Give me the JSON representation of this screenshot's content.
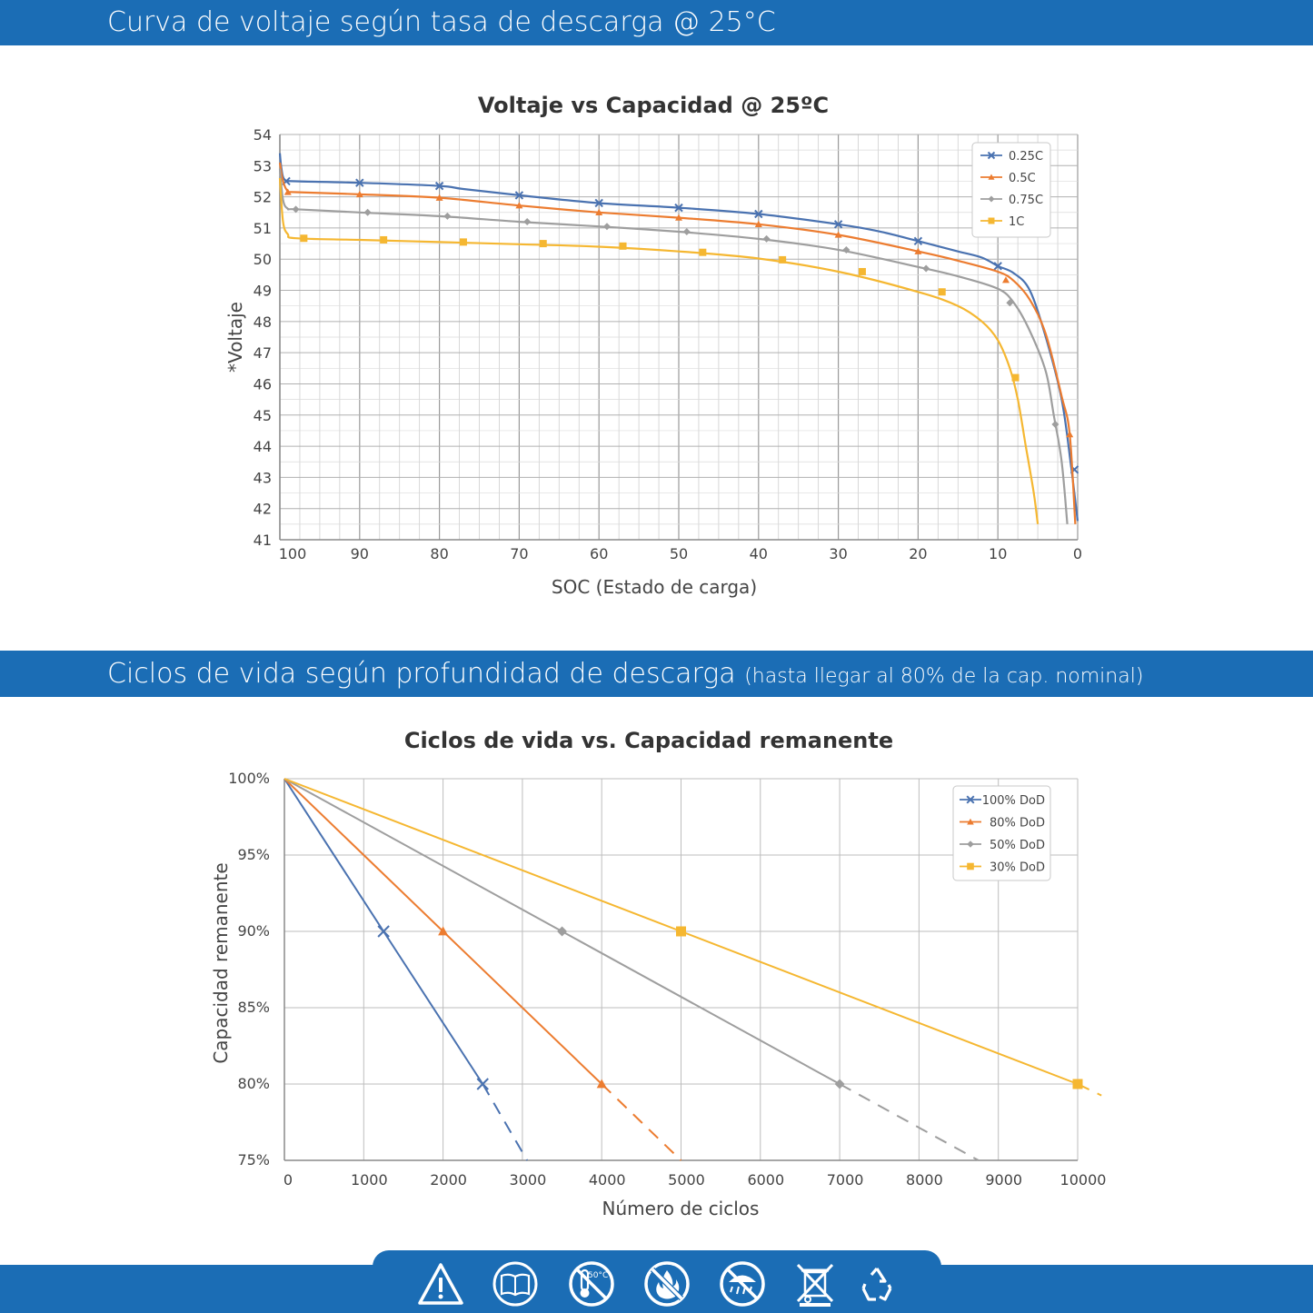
{
  "banners": {
    "voltage": "Curva de voltaje según tasa de descarga @ 25°C",
    "cycles_main": "Ciclos de vida según profundidad de descarga",
    "cycles_sub": "(hasta llegar al 80% de la cap. nominal)"
  },
  "footer_icons": [
    "warning-icon",
    "read-manual-icon",
    "no-high-temperature-icon",
    "no-fire-icon",
    "no-water-icon",
    "no-trash-bin-icon",
    "recycle-icon"
  ],
  "footer_temperature_label": "50°C",
  "colors": {
    "banner": "#1b6db5",
    "blue": "#4a72b0",
    "orange": "#ec7c30",
    "gray": "#9e9e9e",
    "yellow": "#f5b731"
  },
  "chart_data": [
    {
      "type": "line",
      "title": "Voltaje vs Capacidad @ 25ºC",
      "xlabel": "SOC (Estado de carga)",
      "ylabel": "*Voltaje",
      "xlim": [
        100,
        0
      ],
      "ylim": [
        41,
        54
      ],
      "x_reversed": true,
      "x_ticks": [
        100,
        90,
        80,
        70,
        60,
        50,
        40,
        30,
        20,
        10,
        0
      ],
      "y_ticks": [
        41,
        42,
        43,
        44,
        45,
        46,
        47,
        48,
        49,
        50,
        51,
        52,
        53,
        54
      ],
      "grid": true,
      "legend_position": "top-right",
      "series": [
        {
          "name": "0.25C",
          "color": "#4a72b0",
          "marker": "x",
          "curve": [
            [
              100,
              53.4
            ],
            [
              99.8,
              52.9
            ],
            [
              99.4,
              52.55
            ],
            [
              98,
              52.5
            ],
            [
              90,
              52.45
            ],
            [
              80,
              52.35
            ],
            [
              77,
              52.25
            ],
            [
              70,
              52.05
            ],
            [
              60,
              51.8
            ],
            [
              50,
              51.65
            ],
            [
              40,
              51.45
            ],
            [
              30,
              51.12
            ],
            [
              25,
              50.9
            ],
            [
              20,
              50.58
            ],
            [
              15,
              50.25
            ],
            [
              12,
              50.05
            ],
            [
              10,
              49.78
            ],
            [
              8,
              49.55
            ],
            [
              6,
              49.0
            ],
            [
              4,
              47.5
            ],
            [
              2,
              45.5
            ],
            [
              0.8,
              43.3
            ],
            [
              0,
              41.6
            ]
          ],
          "markers": [
            [
              99.2,
              52.5
            ],
            [
              90,
              52.45
            ],
            [
              80,
              52.35
            ],
            [
              70,
              52.05
            ],
            [
              60,
              51.8
            ],
            [
              50,
              51.65
            ],
            [
              40,
              51.45
            ],
            [
              30,
              51.12
            ],
            [
              20,
              50.58
            ],
            [
              10,
              49.78
            ],
            [
              0.4,
              43.25
            ]
          ]
        },
        {
          "name": "0.5C",
          "color": "#ec7c30",
          "marker": "triangle",
          "curve": [
            [
              100,
              53.1
            ],
            [
              99.6,
              52.5
            ],
            [
              99,
              52.18
            ],
            [
              98,
              52.15
            ],
            [
              90,
              52.08
            ],
            [
              80,
              51.97
            ],
            [
              70,
              51.72
            ],
            [
              60,
              51.5
            ],
            [
              50,
              51.33
            ],
            [
              40,
              51.12
            ],
            [
              30,
              50.78
            ],
            [
              20,
              50.25
            ],
            [
              15,
              49.95
            ],
            [
              10,
              49.6
            ],
            [
              8,
              49.3
            ],
            [
              6,
              48.7
            ],
            [
              4,
              47.6
            ],
            [
              2,
              45.6
            ],
            [
              1,
              44.4
            ],
            [
              0.3,
              41.5
            ]
          ],
          "markers": [
            [
              99,
              52.15
            ],
            [
              90,
              52.08
            ],
            [
              80,
              51.97
            ],
            [
              70,
              51.72
            ],
            [
              60,
              51.5
            ],
            [
              50,
              51.33
            ],
            [
              40,
              51.12
            ],
            [
              30,
              50.78
            ],
            [
              20,
              50.25
            ],
            [
              9,
              49.33
            ],
            [
              1,
              44.38
            ]
          ]
        },
        {
          "name": "0.75C",
          "color": "#9e9e9e",
          "marker": "diamond",
          "curve": [
            [
              100,
              52.9
            ],
            [
              99.6,
              51.9
            ],
            [
              99,
              51.62
            ],
            [
              98,
              51.6
            ],
            [
              90,
              51.5
            ],
            [
              80,
              51.38
            ],
            [
              70,
              51.2
            ],
            [
              60,
              51.05
            ],
            [
              50,
              50.88
            ],
            [
              40,
              50.65
            ],
            [
              30,
              50.3
            ],
            [
              20,
              49.75
            ],
            [
              15,
              49.45
            ],
            [
              10,
              49.05
            ],
            [
              8,
              48.6
            ],
            [
              6,
              47.7
            ],
            [
              4,
              46.4
            ],
            [
              3,
              45.0
            ],
            [
              2,
              43.5
            ],
            [
              1.3,
              41.5
            ]
          ],
          "markers": [
            [
              98,
              51.6
            ],
            [
              89,
              51.5
            ],
            [
              79,
              51.38
            ],
            [
              69,
              51.2
            ],
            [
              59,
              51.05
            ],
            [
              49,
              50.88
            ],
            [
              39,
              50.65
            ],
            [
              29,
              50.3
            ],
            [
              19,
              49.7
            ],
            [
              8.5,
              48.6
            ],
            [
              2.8,
              44.7
            ]
          ]
        },
        {
          "name": "1C",
          "color": "#f5b731",
          "marker": "square",
          "curve": [
            [
              100,
              52.6
            ],
            [
              99.6,
              51.2
            ],
            [
              99,
              50.8
            ],
            [
              98,
              50.67
            ],
            [
              90,
              50.62
            ],
            [
              80,
              50.55
            ],
            [
              70,
              50.48
            ],
            [
              60,
              50.4
            ],
            [
              50,
              50.25
            ],
            [
              40,
              50.02
            ],
            [
              30,
              49.6
            ],
            [
              20,
              48.95
            ],
            [
              15,
              48.5
            ],
            [
              12,
              48.0
            ],
            [
              10,
              47.4
            ],
            [
              8.5,
              46.5
            ],
            [
              7.5,
              45.5
            ],
            [
              6.5,
              44.0
            ],
            [
              5.5,
              42.5
            ],
            [
              5,
              41.5
            ]
          ],
          "markers": [
            [
              97,
              50.67
            ],
            [
              87,
              50.62
            ],
            [
              77,
              50.55
            ],
            [
              67,
              50.5
            ],
            [
              57,
              50.42
            ],
            [
              47,
              50.22
            ],
            [
              37,
              49.98
            ],
            [
              27,
              49.6
            ],
            [
              17,
              48.95
            ],
            [
              7.8,
              46.2
            ]
          ]
        }
      ]
    },
    {
      "type": "line",
      "title": "Ciclos de vida vs. Capacidad remanente",
      "xlabel": "Número de ciclos",
      "ylabel": "Capacidad remanente",
      "xlim": [
        0,
        10000
      ],
      "ylim": [
        75,
        100
      ],
      "x_ticks": [
        0,
        1000,
        2000,
        3000,
        4000,
        5000,
        6000,
        7000,
        8000,
        9000,
        10000
      ],
      "y_ticks": [
        "75%",
        "80%",
        "85%",
        "90%",
        "95%",
        "100%"
      ],
      "grid": true,
      "legend_position": "top-right",
      "series": [
        {
          "name": "100% DoD",
          "color": "#4a72b0",
          "marker": "x",
          "points": [
            [
              0,
              100
            ],
            [
              1250,
              90
            ],
            [
              2500,
              80
            ]
          ],
          "projection": [
            [
              2500,
              80
            ],
            [
              3060,
              75
            ]
          ]
        },
        {
          "name": "80% DoD",
          "color": "#ec7c30",
          "marker": "triangle",
          "points": [
            [
              0,
              100
            ],
            [
              2000,
              90
            ],
            [
              4000,
              80
            ]
          ],
          "projection": [
            [
              4000,
              80
            ],
            [
              5000,
              75
            ]
          ]
        },
        {
          "name": "50% DoD",
          "color": "#9e9e9e",
          "marker": "diamond",
          "points": [
            [
              0,
              100
            ],
            [
              3500,
              90
            ],
            [
              7000,
              80
            ]
          ],
          "projection": [
            [
              7000,
              80
            ],
            [
              8750,
              75
            ]
          ]
        },
        {
          "name": "30% DoD",
          "color": "#f5b731",
          "marker": "square",
          "points": [
            [
              0,
              100
            ],
            [
              5000,
              90
            ],
            [
              10000,
              80
            ]
          ],
          "projection": [
            [
              10000,
              80
            ],
            [
              10300,
              79.25
            ]
          ]
        }
      ]
    }
  ]
}
